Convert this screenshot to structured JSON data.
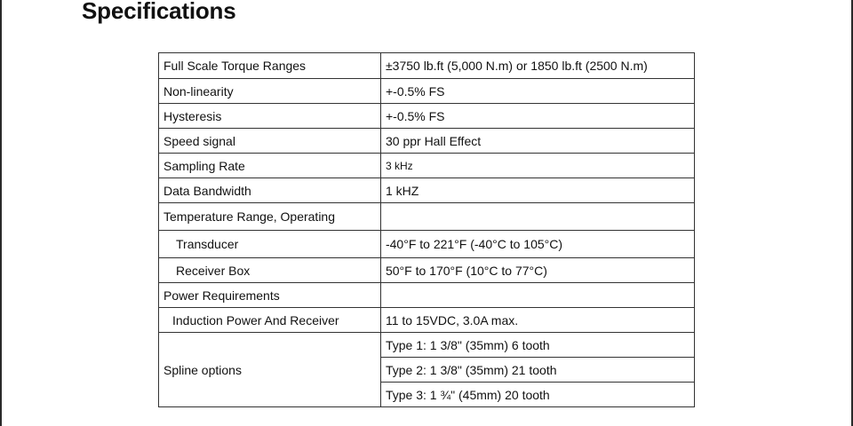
{
  "page": {
    "title": "Specifications"
  },
  "specs": {
    "rows": [
      {
        "label": "Full Scale Torque Ranges",
        "value": "±3750 lb.ft (5,000 N.m) or 1850 lb.ft (2500 N.m)"
      },
      {
        "label": "Non-linearity",
        "value": "+-0.5% FS"
      },
      {
        "label": "Hysteresis",
        "value": "+-0.5% FS"
      },
      {
        "label": "Speed signal",
        "value": "30 ppr Hall Effect"
      },
      {
        "label": "Sampling Rate",
        "value": "3 kHz"
      },
      {
        "label": "Data Bandwidth",
        "value": "1 kHZ"
      },
      {
        "label": "Temperature Range, Operating",
        "value": ""
      },
      {
        "label": "Transducer",
        "value": "-40°F to 221°F (-40°C to 105°C)"
      },
      {
        "label": "Receiver Box",
        "value": "50°F to 170°F (10°C to 77°C)"
      },
      {
        "label": "Power Requirements",
        "value": ""
      },
      {
        "label": "Induction Power And Receiver",
        "value": "11 to 15VDC, 3.0A max."
      }
    ],
    "spline": {
      "label": "Spline options",
      "options": [
        "Type 1: 1 3/8\" (35mm) 6 tooth",
        "Type 2: 1 3/8\" (35mm) 21 tooth",
        "Type 3: 1 ¾\" (45mm) 20 tooth"
      ]
    }
  }
}
